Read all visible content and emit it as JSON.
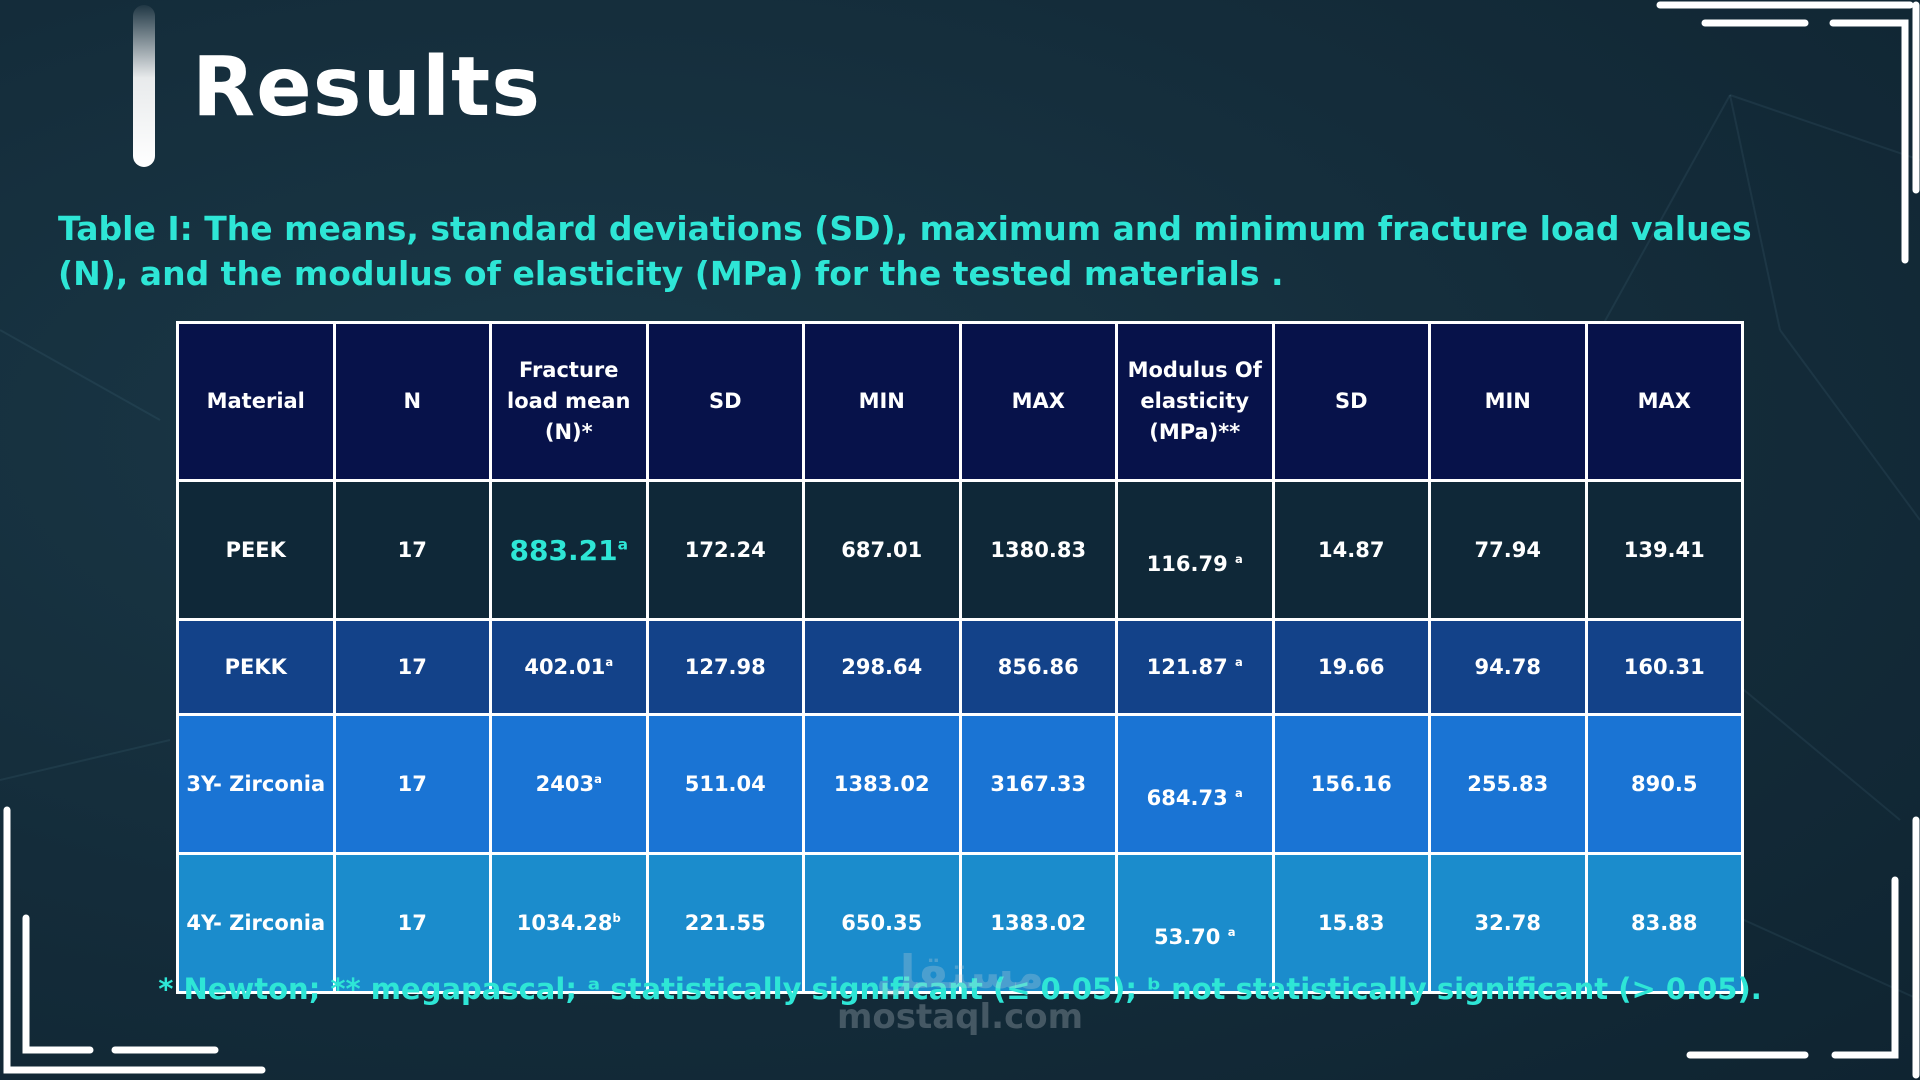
{
  "page": {
    "title": "Results",
    "caption": "Table I: The means, standard deviations (SD), maximum and minimum fracture load values (N), and the modulus of elasticity (MPa) for the tested materials .",
    "footnote": "* Newton; ** megapascal; ᵃ statistically significant (≤ 0.05); ᵇ not statistically significant (> 0.05).",
    "watermark_ar": "مستقل",
    "watermark_en": "mostaql.com"
  },
  "table": {
    "headers": [
      "Material",
      "N",
      "Fracture load mean (N)*",
      "SD",
      "MIN",
      "MAX",
      "Modulus Of elasticity (MPa)**",
      "SD",
      "MIN",
      "MAX"
    ],
    "rows": [
      {
        "material": "PEEK",
        "n": "17",
        "fracture_mean": "883.21",
        "fracture_sup": "a",
        "sd1": "172.24",
        "min1": "687.01",
        "max1": "1380.83",
        "modulus": "116.79",
        "modulus_sup": "a",
        "sd2": "14.87",
        "min2": "77.94",
        "max2": "139.41"
      },
      {
        "material": "PEKK",
        "n": "17",
        "fracture_mean": "402.01",
        "fracture_sup": "a",
        "sd1": "127.98",
        "min1": "298.64",
        "max1": "856.86",
        "modulus": "121.87",
        "modulus_sup": "a",
        "sd2": "19.66",
        "min2": "94.78",
        "max2": "160.31"
      },
      {
        "material": "3Y- Zirconia",
        "n": "17",
        "fracture_mean": "2403",
        "fracture_sup": "a",
        "sd1": "511.04",
        "min1": "1383.02",
        "max1": "3167.33",
        "modulus": "684.73",
        "modulus_sup": "a",
        "sd2": "156.16",
        "min2": "255.83",
        "max2": "890.5"
      },
      {
        "material": "4Y- Zirconia",
        "n": "17",
        "fracture_mean": "1034.28",
        "fracture_sup": "b",
        "sd1": "221.55",
        "min1": "650.35",
        "max1": "1383.02",
        "modulus": "53.70",
        "modulus_sup": "a",
        "sd2": "15.83",
        "min2": "32.78",
        "max2": "83.88"
      }
    ]
  },
  "colors": {
    "background": "#142c3a",
    "accent": "#2ee6d6",
    "header_bg": "#07124a",
    "row_peek": "#0f2838",
    "row_pekk": "#134289",
    "row_3y": "#1a74d4",
    "row_4y": "#1b8ccc"
  }
}
